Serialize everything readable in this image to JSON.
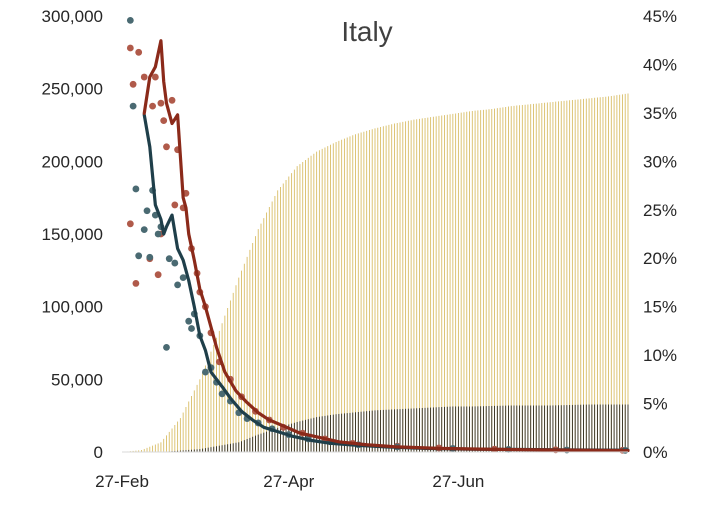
{
  "chart_data": {
    "type": "combo",
    "title": "Italy",
    "x_axis": {
      "type": "date",
      "range": [
        "2020-02-27",
        "2020-08-27"
      ],
      "ticks": [
        "2020-02-27",
        "2020-04-27",
        "2020-06-27"
      ],
      "tick_labels": [
        "27-Feb",
        "27-Apr",
        "27-Jun"
      ]
    },
    "y_left": {
      "range": [
        0,
        300000
      ],
      "ticks": [
        0,
        50000,
        100000,
        150000,
        200000,
        250000,
        300000
      ],
      "tick_labels": [
        "0",
        "50,000",
        "100,000",
        "150,000",
        "200,000",
        "250,000",
        "300,000"
      ]
    },
    "y_right": {
      "range": [
        0,
        0.45
      ],
      "ticks": [
        0,
        0.05,
        0.1,
        0.15,
        0.2,
        0.25,
        0.3,
        0.35,
        0.4,
        0.45
      ],
      "tick_labels": [
        "0%",
        "5%",
        "10%",
        "15%",
        "20%",
        "25%",
        "30%",
        "35%",
        "40%",
        "45%"
      ]
    },
    "grid": false,
    "legend": "none",
    "colors": {
      "series_a": "#8b2a1a",
      "series_a_points": "#b05a4a",
      "series_b": "#1f3f4a",
      "series_b_points": "#4a6a72",
      "bars_light": "#c9a227",
      "bars_dark": "#111111"
    },
    "series": [
      {
        "kind": "line",
        "axis": "left",
        "color_key": "series_a",
        "x": [
          "2020-03-06",
          "2020-03-08",
          "2020-03-10",
          "2020-03-12",
          "2020-03-13",
          "2020-03-14",
          "2020-03-16",
          "2020-03-18",
          "2020-03-20",
          "2020-03-21",
          "2020-03-22",
          "2020-03-24",
          "2020-03-26",
          "2020-03-28",
          "2020-03-30",
          "2020-04-01",
          "2020-04-04",
          "2020-04-08",
          "2020-04-12",
          "2020-04-16",
          "2020-04-20",
          "2020-04-25",
          "2020-05-01",
          "2020-05-08",
          "2020-05-15",
          "2020-05-25",
          "2020-06-05",
          "2020-06-20",
          "2020-07-05",
          "2020-07-20",
          "2020-08-05",
          "2020-08-27"
        ],
        "y": [
          233000,
          258000,
          265000,
          283000,
          255000,
          240000,
          226000,
          232000,
          175000,
          168000,
          150000,
          132000,
          112000,
          100000,
          86000,
          72000,
          55000,
          42000,
          34000,
          27000,
          22000,
          18000,
          13000,
          10000,
          7000,
          5000,
          3500,
          2500,
          2000,
          1600,
          1300,
          1000
        ]
      },
      {
        "kind": "line",
        "axis": "left",
        "color_key": "series_b",
        "x": [
          "2020-03-06",
          "2020-03-08",
          "2020-03-10",
          "2020-03-12",
          "2020-03-13",
          "2020-03-14",
          "2020-03-16",
          "2020-03-18",
          "2020-03-20",
          "2020-03-22",
          "2020-03-24",
          "2020-03-26",
          "2020-03-28",
          "2020-03-30",
          "2020-04-01",
          "2020-04-03",
          "2020-04-06",
          "2020-04-10",
          "2020-04-14",
          "2020-04-18",
          "2020-04-23",
          "2020-04-28",
          "2020-05-05",
          "2020-05-12",
          "2020-05-22",
          "2020-06-01",
          "2020-06-15",
          "2020-07-01",
          "2020-07-20",
          "2020-08-10",
          "2020-08-27"
        ],
        "y": [
          232000,
          210000,
          170000,
          160000,
          150000,
          155000,
          163000,
          140000,
          132000,
          118000,
          100000,
          80000,
          70000,
          55000,
          50000,
          45000,
          37000,
          28000,
          22000,
          17000,
          14000,
          11000,
          8000,
          6000,
          4500,
          3500,
          2500,
          2000,
          1700,
          1400,
          1200
        ]
      },
      {
        "kind": "scatter",
        "axis": "left",
        "color_key": "series_a_points",
        "x": [
          "2020-03-01",
          "2020-03-01",
          "2020-03-02",
          "2020-03-03",
          "2020-03-04",
          "2020-03-06",
          "2020-03-08",
          "2020-03-09",
          "2020-03-10",
          "2020-03-11",
          "2020-03-12",
          "2020-03-12",
          "2020-03-13",
          "2020-03-14",
          "2020-03-16",
          "2020-03-17",
          "2020-03-18",
          "2020-03-20",
          "2020-03-21",
          "2020-03-23",
          "2020-03-25",
          "2020-03-26",
          "2020-03-28",
          "2020-03-30",
          "2020-04-02",
          "2020-04-06",
          "2020-04-10",
          "2020-04-15",
          "2020-04-20",
          "2020-04-25",
          "2020-05-02",
          "2020-05-10",
          "2020-05-20",
          "2020-06-05",
          "2020-06-20",
          "2020-07-10",
          "2020-08-01",
          "2020-08-25"
        ],
        "y": [
          278000,
          157000,
          253000,
          116000,
          275000,
          258000,
          133000,
          238000,
          258000,
          122000,
          150000,
          240000,
          228000,
          210000,
          242000,
          170000,
          208000,
          168000,
          178000,
          140000,
          123000,
          110000,
          100000,
          82000,
          62000,
          50000,
          38000,
          28000,
          22000,
          17000,
          13000,
          9000,
          6000,
          4000,
          2800,
          2000,
          1500,
          1200
        ]
      },
      {
        "kind": "scatter",
        "axis": "left",
        "color_key": "series_b_points",
        "x": [
          "2020-03-01",
          "2020-03-02",
          "2020-03-03",
          "2020-03-04",
          "2020-03-06",
          "2020-03-07",
          "2020-03-08",
          "2020-03-09",
          "2020-03-10",
          "2020-03-11",
          "2020-03-12",
          "2020-03-14",
          "2020-03-15",
          "2020-03-17",
          "2020-03-18",
          "2020-03-20",
          "2020-03-22",
          "2020-03-23",
          "2020-03-24",
          "2020-03-26",
          "2020-03-28",
          "2020-03-30",
          "2020-04-01",
          "2020-04-03",
          "2020-04-06",
          "2020-04-09",
          "2020-04-12",
          "2020-04-16",
          "2020-04-21",
          "2020-04-27",
          "2020-05-04",
          "2020-05-12",
          "2020-05-22",
          "2020-06-05",
          "2020-06-25",
          "2020-07-15",
          "2020-08-05",
          "2020-08-26"
        ],
        "y": [
          297000,
          238000,
          181000,
          135000,
          153000,
          166000,
          134000,
          180000,
          163000,
          150000,
          155000,
          72000,
          133000,
          130000,
          115000,
          120000,
          90000,
          85000,
          95000,
          80000,
          55000,
          58000,
          48000,
          40000,
          35000,
          27000,
          23000,
          20000,
          16000,
          12000,
          9000,
          7000,
          5000,
          3500,
          2500,
          1800,
          1400,
          1100
        ]
      },
      {
        "kind": "column_cumulative",
        "axis": "right",
        "color_key": "bars_light",
        "x": [
          "2020-02-27",
          "2020-03-05",
          "2020-03-12",
          "2020-03-19",
          "2020-03-26",
          "2020-04-02",
          "2020-04-09",
          "2020-04-16",
          "2020-04-23",
          "2020-04-30",
          "2020-05-07",
          "2020-05-14",
          "2020-05-21",
          "2020-05-28",
          "2020-06-04",
          "2020-06-11",
          "2020-06-18",
          "2020-06-25",
          "2020-07-02",
          "2020-07-09",
          "2020-07-16",
          "2020-07-23",
          "2020-07-30",
          "2020-08-06",
          "2020-08-13",
          "2020-08-20",
          "2020-08-27"
        ],
        "y": [
          0.0,
          0.002,
          0.01,
          0.035,
          0.075,
          0.125,
          0.18,
          0.23,
          0.27,
          0.295,
          0.31,
          0.32,
          0.328,
          0.334,
          0.339,
          0.343,
          0.346,
          0.349,
          0.352,
          0.354,
          0.357,
          0.359,
          0.361,
          0.363,
          0.365,
          0.367,
          0.37
        ]
      },
      {
        "kind": "column_cumulative",
        "axis": "right",
        "color_key": "bars_dark",
        "x": [
          "2020-02-27",
          "2020-03-12",
          "2020-03-26",
          "2020-04-09",
          "2020-04-16",
          "2020-04-23",
          "2020-04-30",
          "2020-05-07",
          "2020-05-14",
          "2020-05-21",
          "2020-05-28",
          "2020-06-04",
          "2020-06-11",
          "2020-06-18",
          "2020-06-25",
          "2020-07-02",
          "2020-07-16",
          "2020-07-30",
          "2020-08-13",
          "2020-08-27"
        ],
        "y": [
          0.0,
          0.0,
          0.003,
          0.01,
          0.018,
          0.025,
          0.031,
          0.036,
          0.039,
          0.041,
          0.043,
          0.044,
          0.045,
          0.046,
          0.047,
          0.047,
          0.048,
          0.048,
          0.049,
          0.049
        ]
      }
    ]
  }
}
